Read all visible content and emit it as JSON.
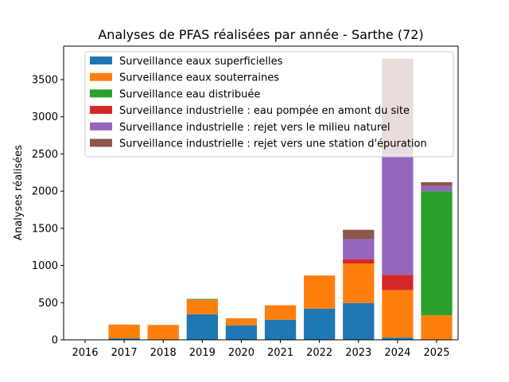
{
  "chart_data": {
    "type": "bar",
    "stacked": true,
    "title": "Analyses de PFAS réalisées par année - Sarthe (72)",
    "xlabel": "",
    "ylabel": "Analyses réalisées",
    "ylim": [
      0,
      3950
    ],
    "yticks": [
      0,
      500,
      1000,
      1500,
      2000,
      2500,
      3000,
      3500
    ],
    "categories": [
      "2016",
      "2017",
      "2018",
      "2019",
      "2020",
      "2021",
      "2022",
      "2023",
      "2024",
      "2025"
    ],
    "legend_position": "top-right",
    "grid": false,
    "series": [
      {
        "name": "Surveillance eaux superficielles",
        "color": "#1f77b4",
        "values": [
          0,
          20,
          0,
          345,
          195,
          270,
          420,
          495,
          30,
          0
        ]
      },
      {
        "name": "Surveillance eaux souterraines",
        "color": "#ff7f0e",
        "values": [
          0,
          185,
          200,
          195,
          95,
          195,
          445,
          530,
          640,
          330
        ]
      },
      {
        "name": "Surveillance eau distribuée",
        "color": "#2ca02c",
        "values": [
          0,
          0,
          0,
          10,
          0,
          0,
          0,
          0,
          0,
          1670
        ]
      },
      {
        "name": "Surveillance industrielle : eau pompée en amont du site",
        "color": "#d62728",
        "values": [
          0,
          0,
          0,
          0,
          0,
          0,
          0,
          60,
          205,
          0
        ]
      },
      {
        "name": "Surveillance industrielle : rejet vers le milieu naturel",
        "color": "#9467bd",
        "values": [
          0,
          0,
          0,
          0,
          0,
          0,
          0,
          270,
          1625,
          70
        ]
      },
      {
        "name": "Surveillance industrielle : rejet vers une station d'épuration",
        "color": "#8c564b",
        "values": [
          0,
          0,
          0,
          0,
          0,
          0,
          0,
          125,
          1280,
          50
        ]
      }
    ]
  }
}
